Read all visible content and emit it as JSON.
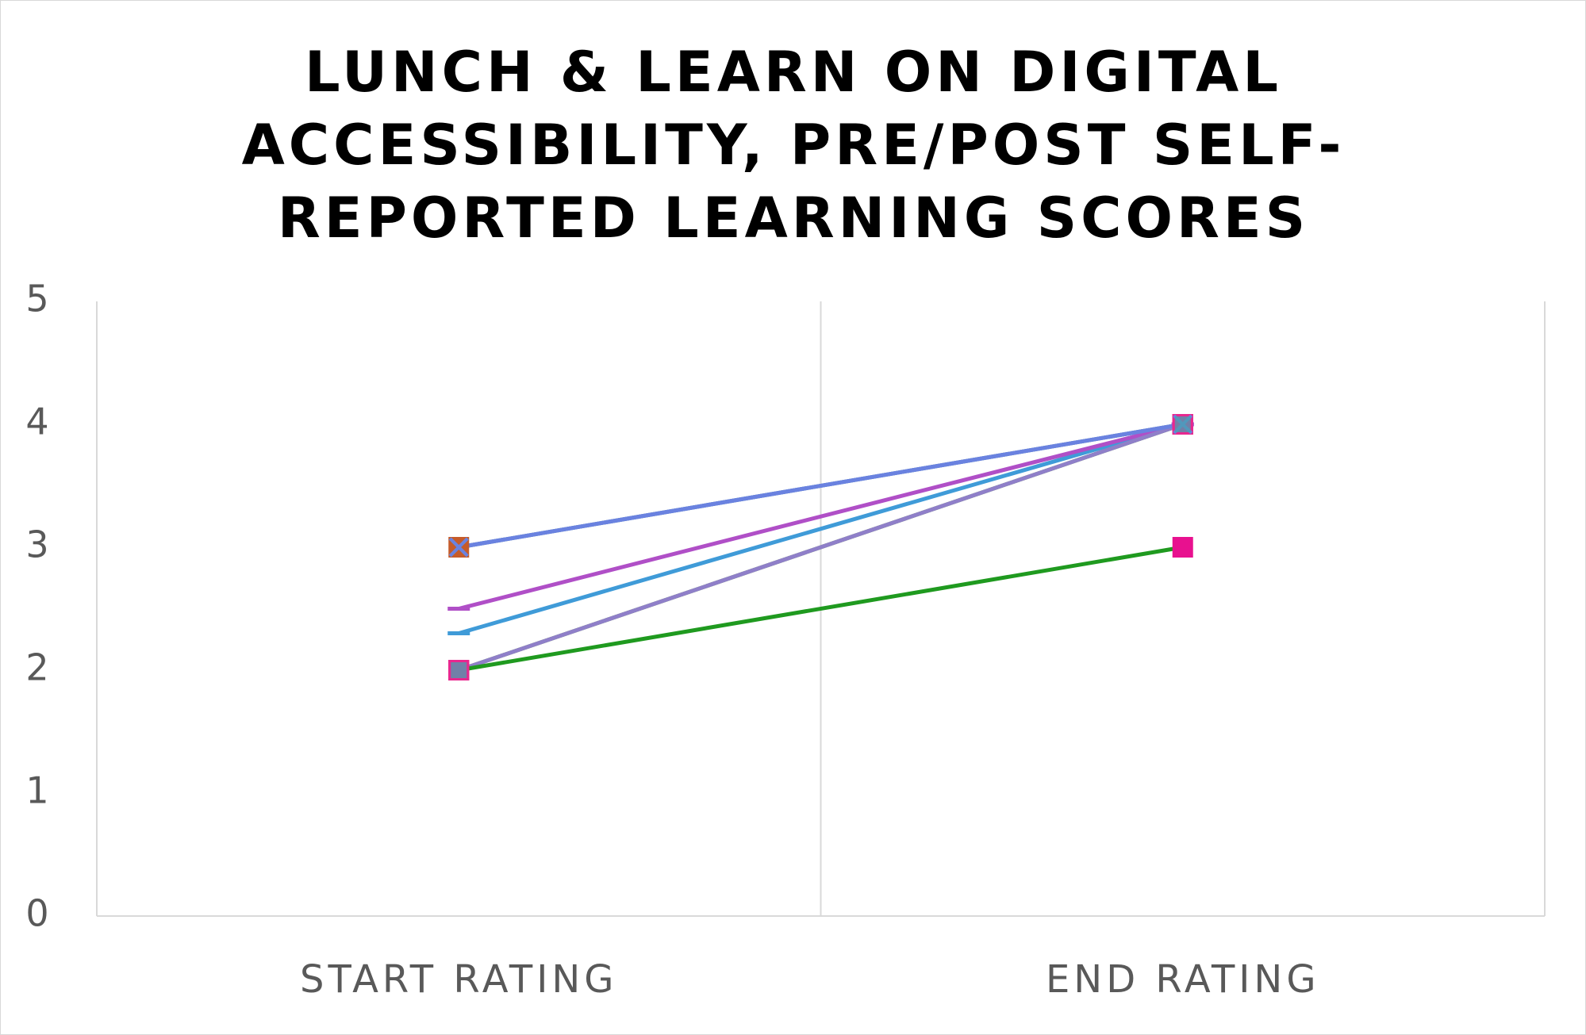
{
  "chart_data": {
    "type": "line",
    "title": "LUNCH & LEARN ON DIGITAL ACCESSIBILITY, PRE/POST SELF-REPORTED LEARNING SCORES",
    "xlabel": "",
    "ylabel": "",
    "categories": [
      "START RATING",
      "END RATING"
    ],
    "ylim": [
      0,
      5
    ],
    "yticks": [
      0,
      1,
      2,
      3,
      4,
      5
    ],
    "grid": "vertical",
    "legend": "none",
    "series": [
      {
        "values": [
          3,
          4
        ],
        "color": "#7f7f7f",
        "marker": "square"
      },
      {
        "values": [
          2,
          4
        ],
        "color": "#a5a5a5",
        "marker": "square"
      },
      {
        "values": [
          3,
          4
        ],
        "color": "#5b9bd5",
        "marker": "x"
      },
      {
        "values": [
          2,
          4
        ],
        "color": "#70ad47",
        "marker": "square"
      },
      {
        "values": [
          2.3,
          4
        ],
        "color": "#3f9bd8",
        "marker": "dash"
      },
      {
        "values": [
          2.5,
          4
        ],
        "color": "#b04fc7",
        "marker": "dash"
      },
      {
        "values": [
          2,
          4
        ],
        "color": "#8f7fc9",
        "marker": "square"
      },
      {
        "values": [
          3,
          4
        ],
        "color": "#6a82e0",
        "marker": "x"
      },
      {
        "values": [
          2,
          3
        ],
        "color": "#1f9a1f",
        "marker": "square"
      }
    ],
    "marker_colors": {
      "start_top": "#c65b2a",
      "start_bottom": "#e8278f",
      "end_top": "#e8278f",
      "end_bottom": "#e8118f",
      "overlay": "#4a9fb0"
    }
  }
}
